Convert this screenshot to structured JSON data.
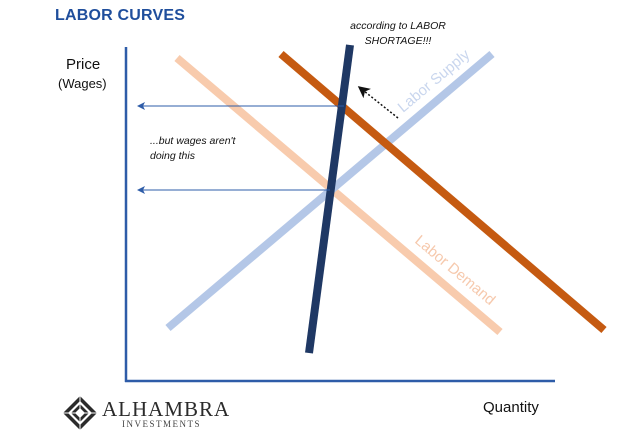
{
  "title": "LABOR CURVES",
  "axis": {
    "y_label": "Price",
    "y_label_sub": "(Wages)",
    "x_label": "Quantity"
  },
  "annotations": {
    "shortage": "according to LABOR SHORTAGE!!!",
    "wages": "...but wages aren't doing this"
  },
  "curves": {
    "supply_label": "Labor Supply",
    "demand_label": "Labor Demand"
  },
  "colors": {
    "title": "#1f4e9c",
    "supply": "#b4c7e7",
    "demand_original": "#f8cbad",
    "demand_shifted": "#c55a11",
    "vertical_supply": "#1f3864",
    "axis": "#2e5ca8",
    "arrow": "#2e5ca8"
  },
  "logo": {
    "brand": "ALHAMBRA",
    "sub": "INVESTMENTS"
  }
}
